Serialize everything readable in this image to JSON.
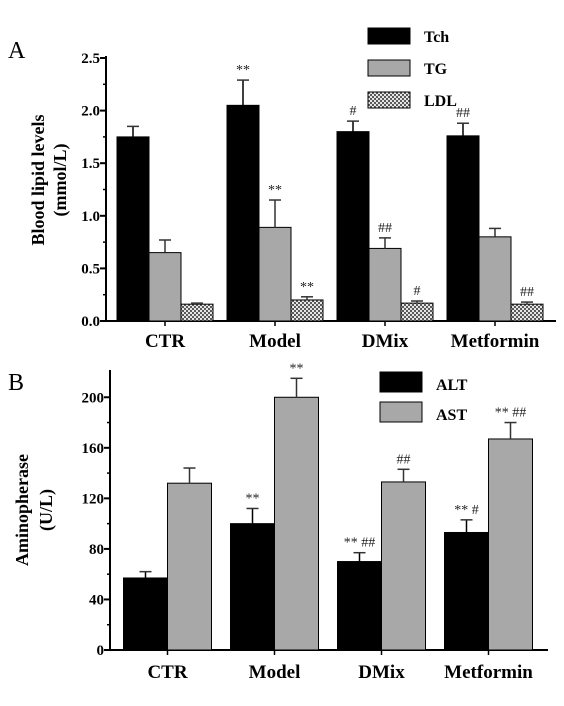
{
  "colors": {
    "black": "#000000",
    "gray": "#a8a8a8",
    "pattern": "checkered-gray",
    "axis": "#000000"
  },
  "chart_data": [
    {
      "type": "bar",
      "panel": "A",
      "categories": [
        "CTR",
        "Model",
        "DMix",
        "Metformin"
      ],
      "ylabel_line1": "Blood lipid levels",
      "ylabel_line2": "(mmol/L)",
      "ylim": [
        0,
        2.5
      ],
      "yticks": [
        0.0,
        0.5,
        1.0,
        1.5,
        2.0,
        2.5
      ],
      "ytick_labels": [
        "0.0",
        "0.5",
        "1.0",
        "1.5",
        "2.0",
        "2.5"
      ],
      "legend_position": "top-right",
      "series": [
        {
          "name": "Tch",
          "style": "black",
          "values": [
            1.75,
            2.05,
            1.8,
            1.76
          ],
          "errors": [
            0.1,
            0.24,
            0.1,
            0.12
          ],
          "sig": [
            "",
            "**",
            "#",
            "##"
          ]
        },
        {
          "name": "TG",
          "style": "gray",
          "values": [
            0.65,
            0.89,
            0.69,
            0.8
          ],
          "errors": [
            0.12,
            0.26,
            0.1,
            0.08
          ],
          "sig": [
            "",
            "**",
            "##",
            ""
          ]
        },
        {
          "name": "LDL",
          "style": "pattern",
          "values": [
            0.16,
            0.2,
            0.17,
            0.16
          ],
          "errors": [
            0.01,
            0.03,
            0.02,
            0.02
          ],
          "sig": [
            "",
            "**",
            "#",
            "##"
          ]
        }
      ]
    },
    {
      "type": "bar",
      "panel": "B",
      "categories": [
        "CTR",
        "Model",
        "DMix",
        "Metformin"
      ],
      "ylabel_line1": "Aminopherase",
      "ylabel_line2": "(U/L)",
      "ylim": [
        0,
        220
      ],
      "yticks": [
        0,
        40,
        80,
        120,
        160,
        200
      ],
      "ytick_labels": [
        "0",
        "40",
        "80",
        "120",
        "160",
        "200"
      ],
      "legend_position": "top-right",
      "series": [
        {
          "name": "ALT",
          "style": "black",
          "values": [
            57,
            100,
            70,
            93
          ],
          "errors": [
            5,
            12,
            7,
            10
          ],
          "sig": [
            "",
            "**",
            "** ##",
            "** #"
          ]
        },
        {
          "name": "AST",
          "style": "gray",
          "values": [
            132,
            200,
            133,
            167
          ],
          "errors": [
            12,
            15,
            10,
            13
          ],
          "sig": [
            "",
            "**",
            "##",
            "** ##"
          ]
        }
      ]
    }
  ]
}
